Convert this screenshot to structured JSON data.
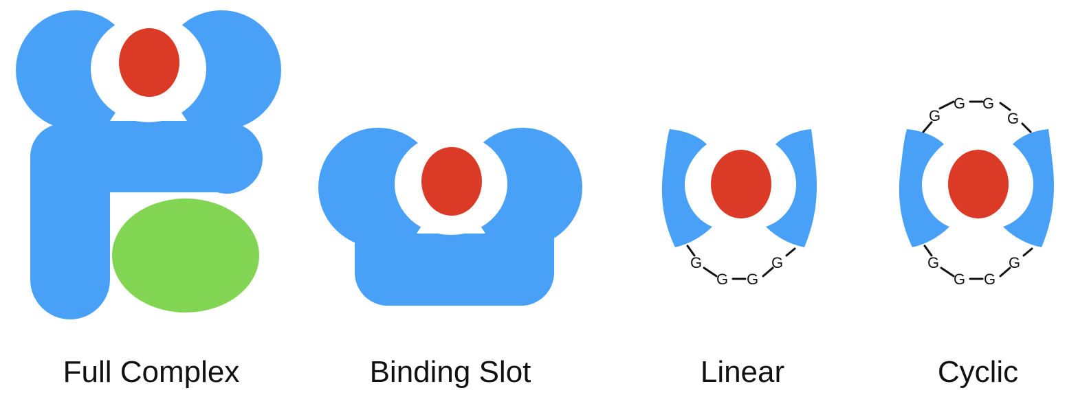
{
  "colors": {
    "receptor": "#49a1f7",
    "ligand": "#db3b26",
    "partner": "#82d453",
    "linker": "#111111",
    "background": "#ffffff"
  },
  "panels": [
    {
      "caption": "Full Complex"
    },
    {
      "caption": "Binding Slot"
    },
    {
      "caption": "Linear",
      "linker_residues": [
        "G",
        "G",
        "G",
        "G"
      ]
    },
    {
      "caption": "Cyclic",
      "linker_residues_top": [
        "G",
        "G",
        "G",
        "G"
      ],
      "linker_residues_bottom": [
        "G",
        "G",
        "G",
        "G"
      ]
    }
  ]
}
